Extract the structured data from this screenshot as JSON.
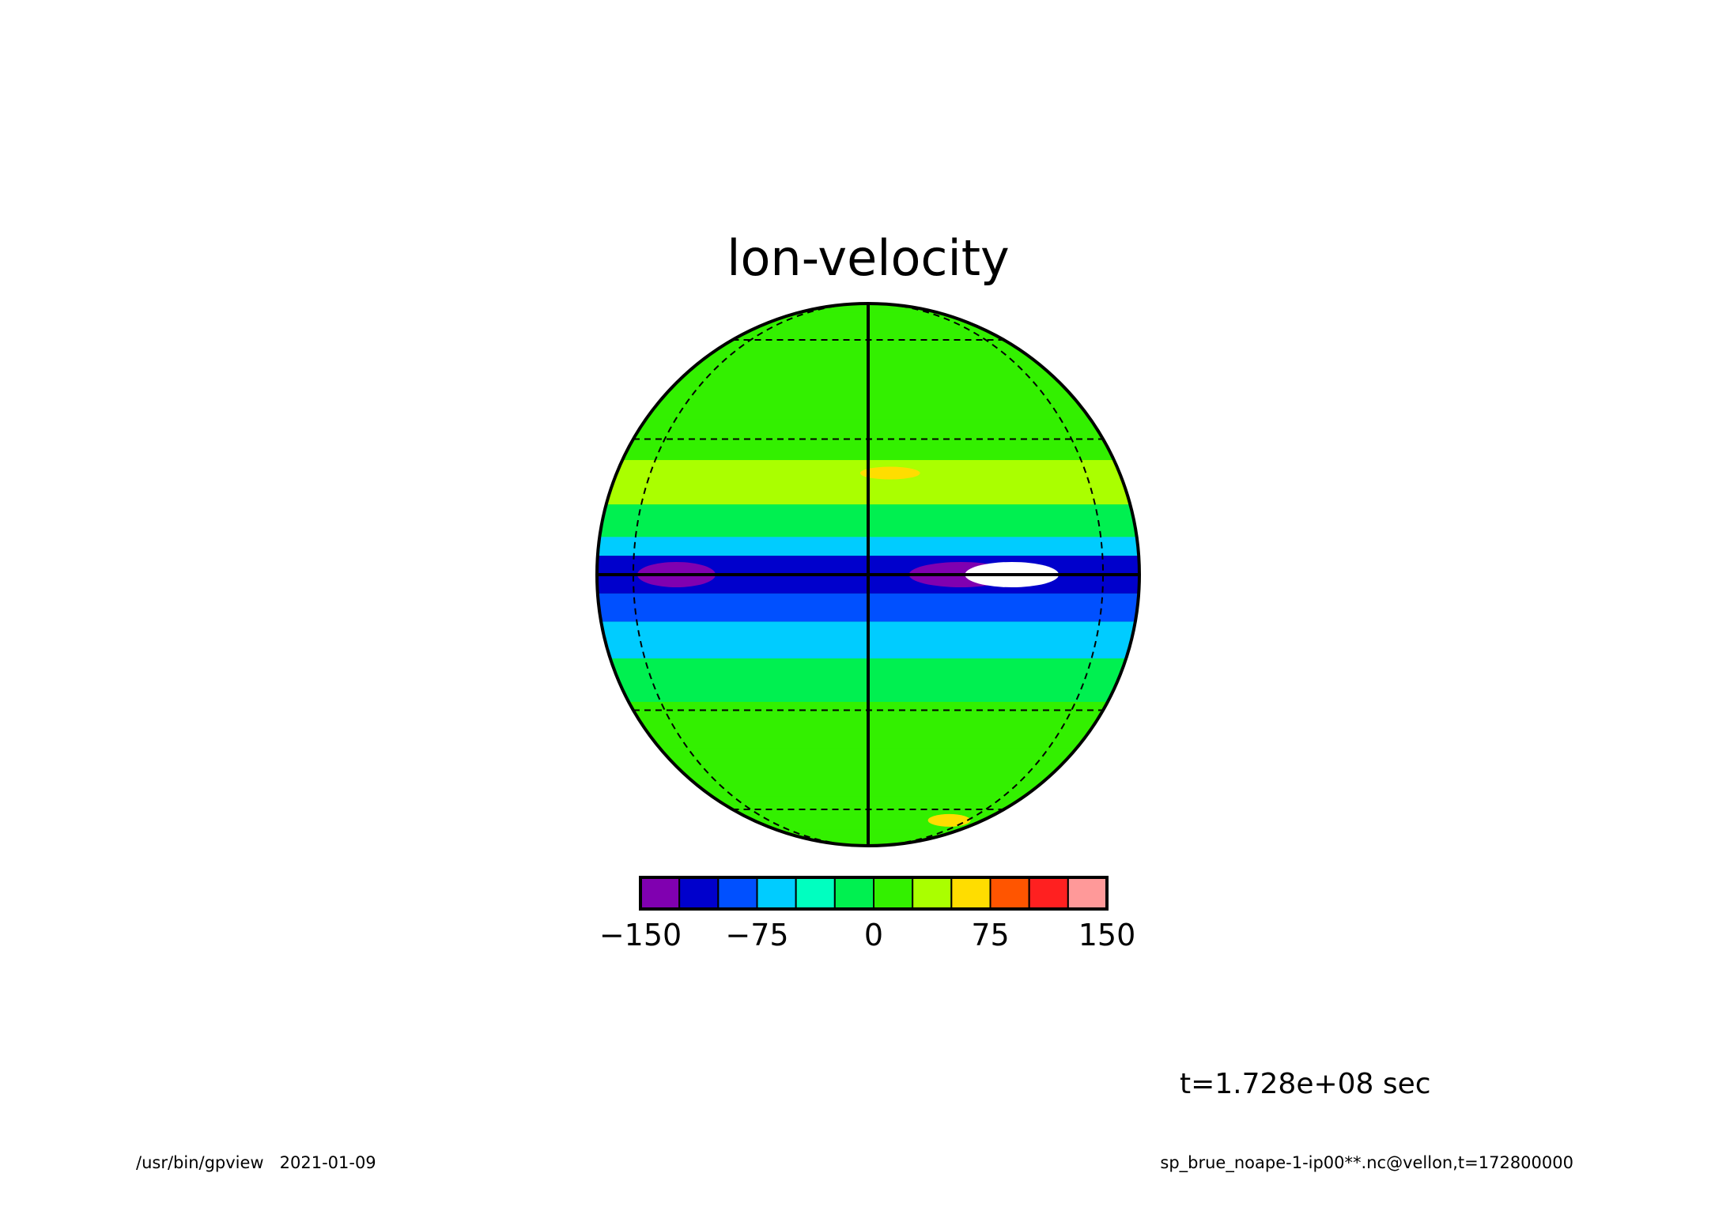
{
  "chart_data": {
    "type": "contour-map",
    "projection": "orthographic",
    "title": "lon-velocity",
    "time_label": "t=1.728e+08 sec",
    "footer_left": "/usr/bin/gpview   2021-01-09",
    "footer_right": "sp_brue_noape-1-ip00**.nc@vellon,t=172800000",
    "colorbar": {
      "range": [
        -150,
        150
      ],
      "levels": [
        -150,
        -125,
        -100,
        -75,
        -50,
        -25,
        0,
        25,
        50,
        75,
        100,
        125,
        150
      ],
      "colors": [
        "#8000b0",
        "#0000cc",
        "#0050ff",
        "#00ccff",
        "#00ffc0",
        "#00f050",
        "#33f000",
        "#aaff00",
        "#ffdd00",
        "#ff5500",
        "#ff2020",
        "#ff9999"
      ],
      "tick_labels": [
        "−150",
        "−75",
        "0",
        "75",
        "150"
      ],
      "tick_values": [
        -150,
        -75,
        0,
        75,
        150
      ]
    },
    "latitude_bands": [
      {
        "lat_from": 90,
        "lat_to": 75,
        "value": 10
      },
      {
        "lat_from": 75,
        "lat_to": 60,
        "value": 15
      },
      {
        "lat_from": 60,
        "lat_to": 45,
        "value": 5
      },
      {
        "lat_from": 45,
        "lat_to": 35,
        "value": 15
      },
      {
        "lat_from": 35,
        "lat_to": 25,
        "value": 5
      },
      {
        "lat_from": 25,
        "lat_to": 15,
        "value": 35
      },
      {
        "lat_from": 15,
        "lat_to": 8,
        "value": -15
      },
      {
        "lat_from": 8,
        "lat_to": 4,
        "value": -60
      },
      {
        "lat_from": 4,
        "lat_to": -4,
        "value": -110
      },
      {
        "lat_from": -4,
        "lat_to": -10,
        "value": -90
      },
      {
        "lat_from": -10,
        "lat_to": -18,
        "value": -60
      },
      {
        "lat_from": -18,
        "lat_to": -28,
        "value": -25
      },
      {
        "lat_from": -28,
        "lat_to": -40,
        "value": 10
      },
      {
        "lat_from": -40,
        "lat_to": -55,
        "value": 5
      },
      {
        "lat_from": -55,
        "lat_to": -70,
        "value": 15
      },
      {
        "lat_from": -70,
        "lat_to": -90,
        "value": 5
      }
    ],
    "features": [
      {
        "lon": -45,
        "lat": 0,
        "value": -140
      },
      {
        "lon": 20,
        "lat": 0,
        "value": -140
      },
      {
        "lon": 32,
        "lat": 0,
        "value": -155
      },
      {
        "lon": 5,
        "lat": 22,
        "value": 60
      },
      {
        "lon": 45,
        "lat": -65,
        "value": 60
      }
    ],
    "grid": {
      "parallels": [
        -60,
        -30,
        0,
        30,
        60
      ],
      "meridians": [
        -60,
        0,
        60
      ],
      "solid_lines": [
        "equator",
        "central-meridian"
      ]
    }
  }
}
